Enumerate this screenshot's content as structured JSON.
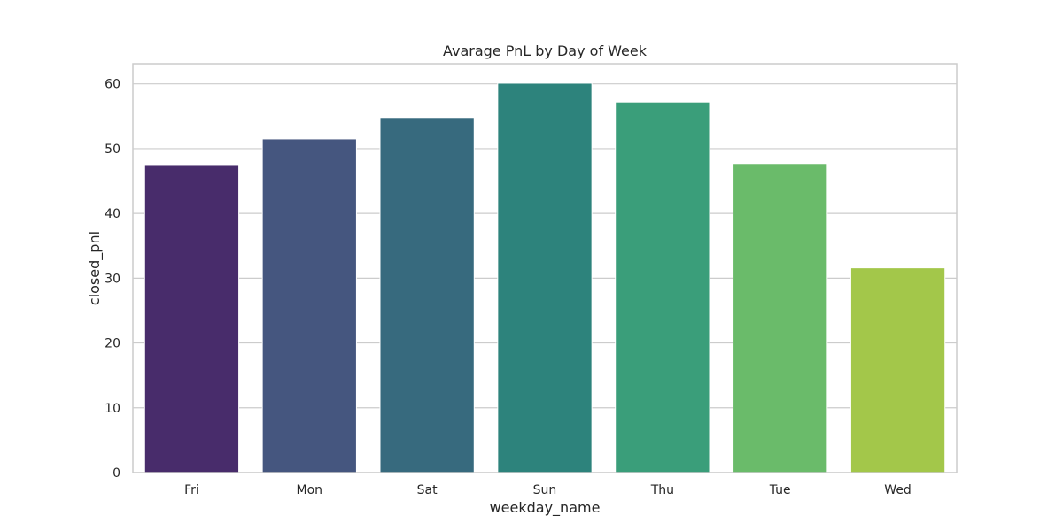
{
  "chart_data": {
    "type": "bar",
    "title": "Avarage PnL by Day of Week",
    "xlabel": "weekday_name",
    "ylabel": "closed_pnl",
    "categories": [
      "Fri",
      "Mon",
      "Sat",
      "Sun",
      "Thu",
      "Tue",
      "Wed"
    ],
    "values": [
      47.4,
      51.5,
      54.8,
      60.1,
      57.2,
      47.7,
      31.6
    ],
    "colors": [
      "#482c6b",
      "#45567f",
      "#376a7e",
      "#2d837c",
      "#3a9e7a",
      "#6abb6a",
      "#a3c74a"
    ],
    "ylim": [
      0,
      63.1
    ],
    "yticks": [
      0,
      10,
      20,
      30,
      40,
      50,
      60
    ],
    "grid": true,
    "legend": "none"
  }
}
